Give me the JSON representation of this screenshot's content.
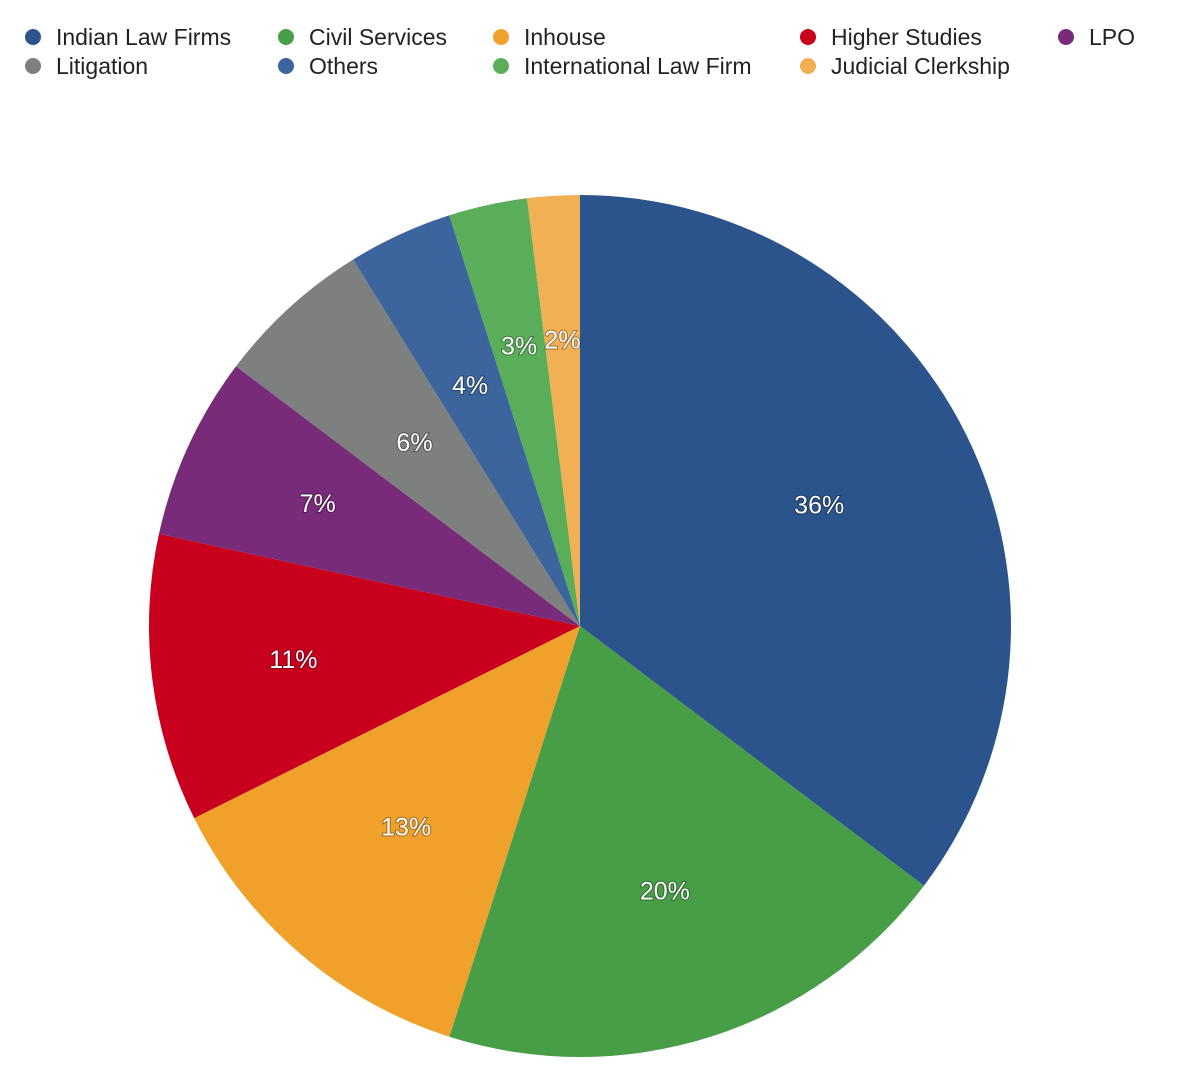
{
  "chart_data": {
    "type": "pie",
    "legend": "top",
    "slices": [
      {
        "label": "Indian Law Firms",
        "value": 36,
        "value_label": "36%",
        "color": "#2B548C"
      },
      {
        "label": "Civil Services",
        "value": 20,
        "value_label": "20%",
        "color": "#479E47"
      },
      {
        "label": "Inhouse",
        "value": 13,
        "value_label": "13%",
        "color": "#EFA12C"
      },
      {
        "label": "Higher Studies",
        "value": 11,
        "value_label": "11%",
        "color": "#C8001E"
      },
      {
        "label": "LPO",
        "value": 7,
        "value_label": "7%",
        "color": "#782B78"
      },
      {
        "label": "Litigation",
        "value": 6,
        "value_label": "6%",
        "color": "#7E807F"
      },
      {
        "label": "Others",
        "value": 4,
        "value_label": "4%",
        "color": "#3C659D"
      },
      {
        "label": "International Law Firm",
        "value": 3,
        "value_label": "3%",
        "color": "#5AAE5A"
      },
      {
        "label": "Judicial Clerkship",
        "value": 2,
        "value_label": "2%",
        "color": "#F1B053"
      }
    ]
  }
}
